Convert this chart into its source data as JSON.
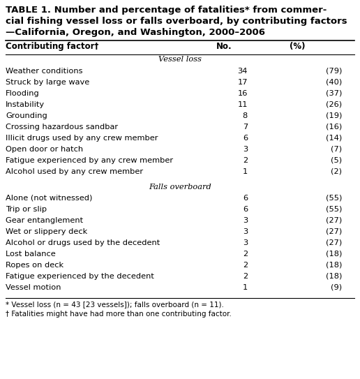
{
  "title_line1": "TABLE 1. Number and percentage of fatalities* from commer-",
  "title_line2": "cial fishing vessel loss or falls overboard, by contributing factors",
  "title_line3": "—California, Oregon, and Washington, 2000–2006",
  "col_header": [
    "Contributing factor†",
    "No.",
    "(%)"
  ],
  "section1_header": "Vessel loss",
  "section1_rows": [
    [
      "Weather conditions",
      "34",
      "(79)"
    ],
    [
      "Struck by large wave",
      "17",
      "(40)"
    ],
    [
      "Flooding",
      "16",
      "(37)"
    ],
    [
      "Instability",
      "11",
      "(26)"
    ],
    [
      "Grounding",
      "8",
      "(19)"
    ],
    [
      "Crossing hazardous sandbar",
      "7",
      "(16)"
    ],
    [
      "Illicit drugs used by any crew member",
      "6",
      "(14)"
    ],
    [
      "Open door or hatch",
      "3",
      "(7)"
    ],
    [
      "Fatigue experienced by any crew member",
      "2",
      "(5)"
    ],
    [
      "Alcohol used by any crew member",
      "1",
      "(2)"
    ]
  ],
  "section2_header": "Falls overboard",
  "section2_rows": [
    [
      "Alone (not witnessed)",
      "6",
      "(55)"
    ],
    [
      "Trip or slip",
      "6",
      "(55)"
    ],
    [
      "Gear entanglement",
      "3",
      "(27)"
    ],
    [
      "Wet or slippery deck",
      "3",
      "(27)"
    ],
    [
      "Alcohol or drugs used by the decedent",
      "3",
      "(27)"
    ],
    [
      "Lost balance",
      "2",
      "(18)"
    ],
    [
      "Ropes on deck",
      "2",
      "(18)"
    ],
    [
      "Fatigue experienced by the decedent",
      "2",
      "(18)"
    ],
    [
      "Vessel motion",
      "1",
      "(9)"
    ]
  ],
  "footnote1": "* Vessel loss (n = 43 [23 vessels]); falls overboard (n = 11).",
  "footnote2": "† Fatalities might have had more than one contributing factor.",
  "bg_color": "#ffffff",
  "text_color": "#000000"
}
